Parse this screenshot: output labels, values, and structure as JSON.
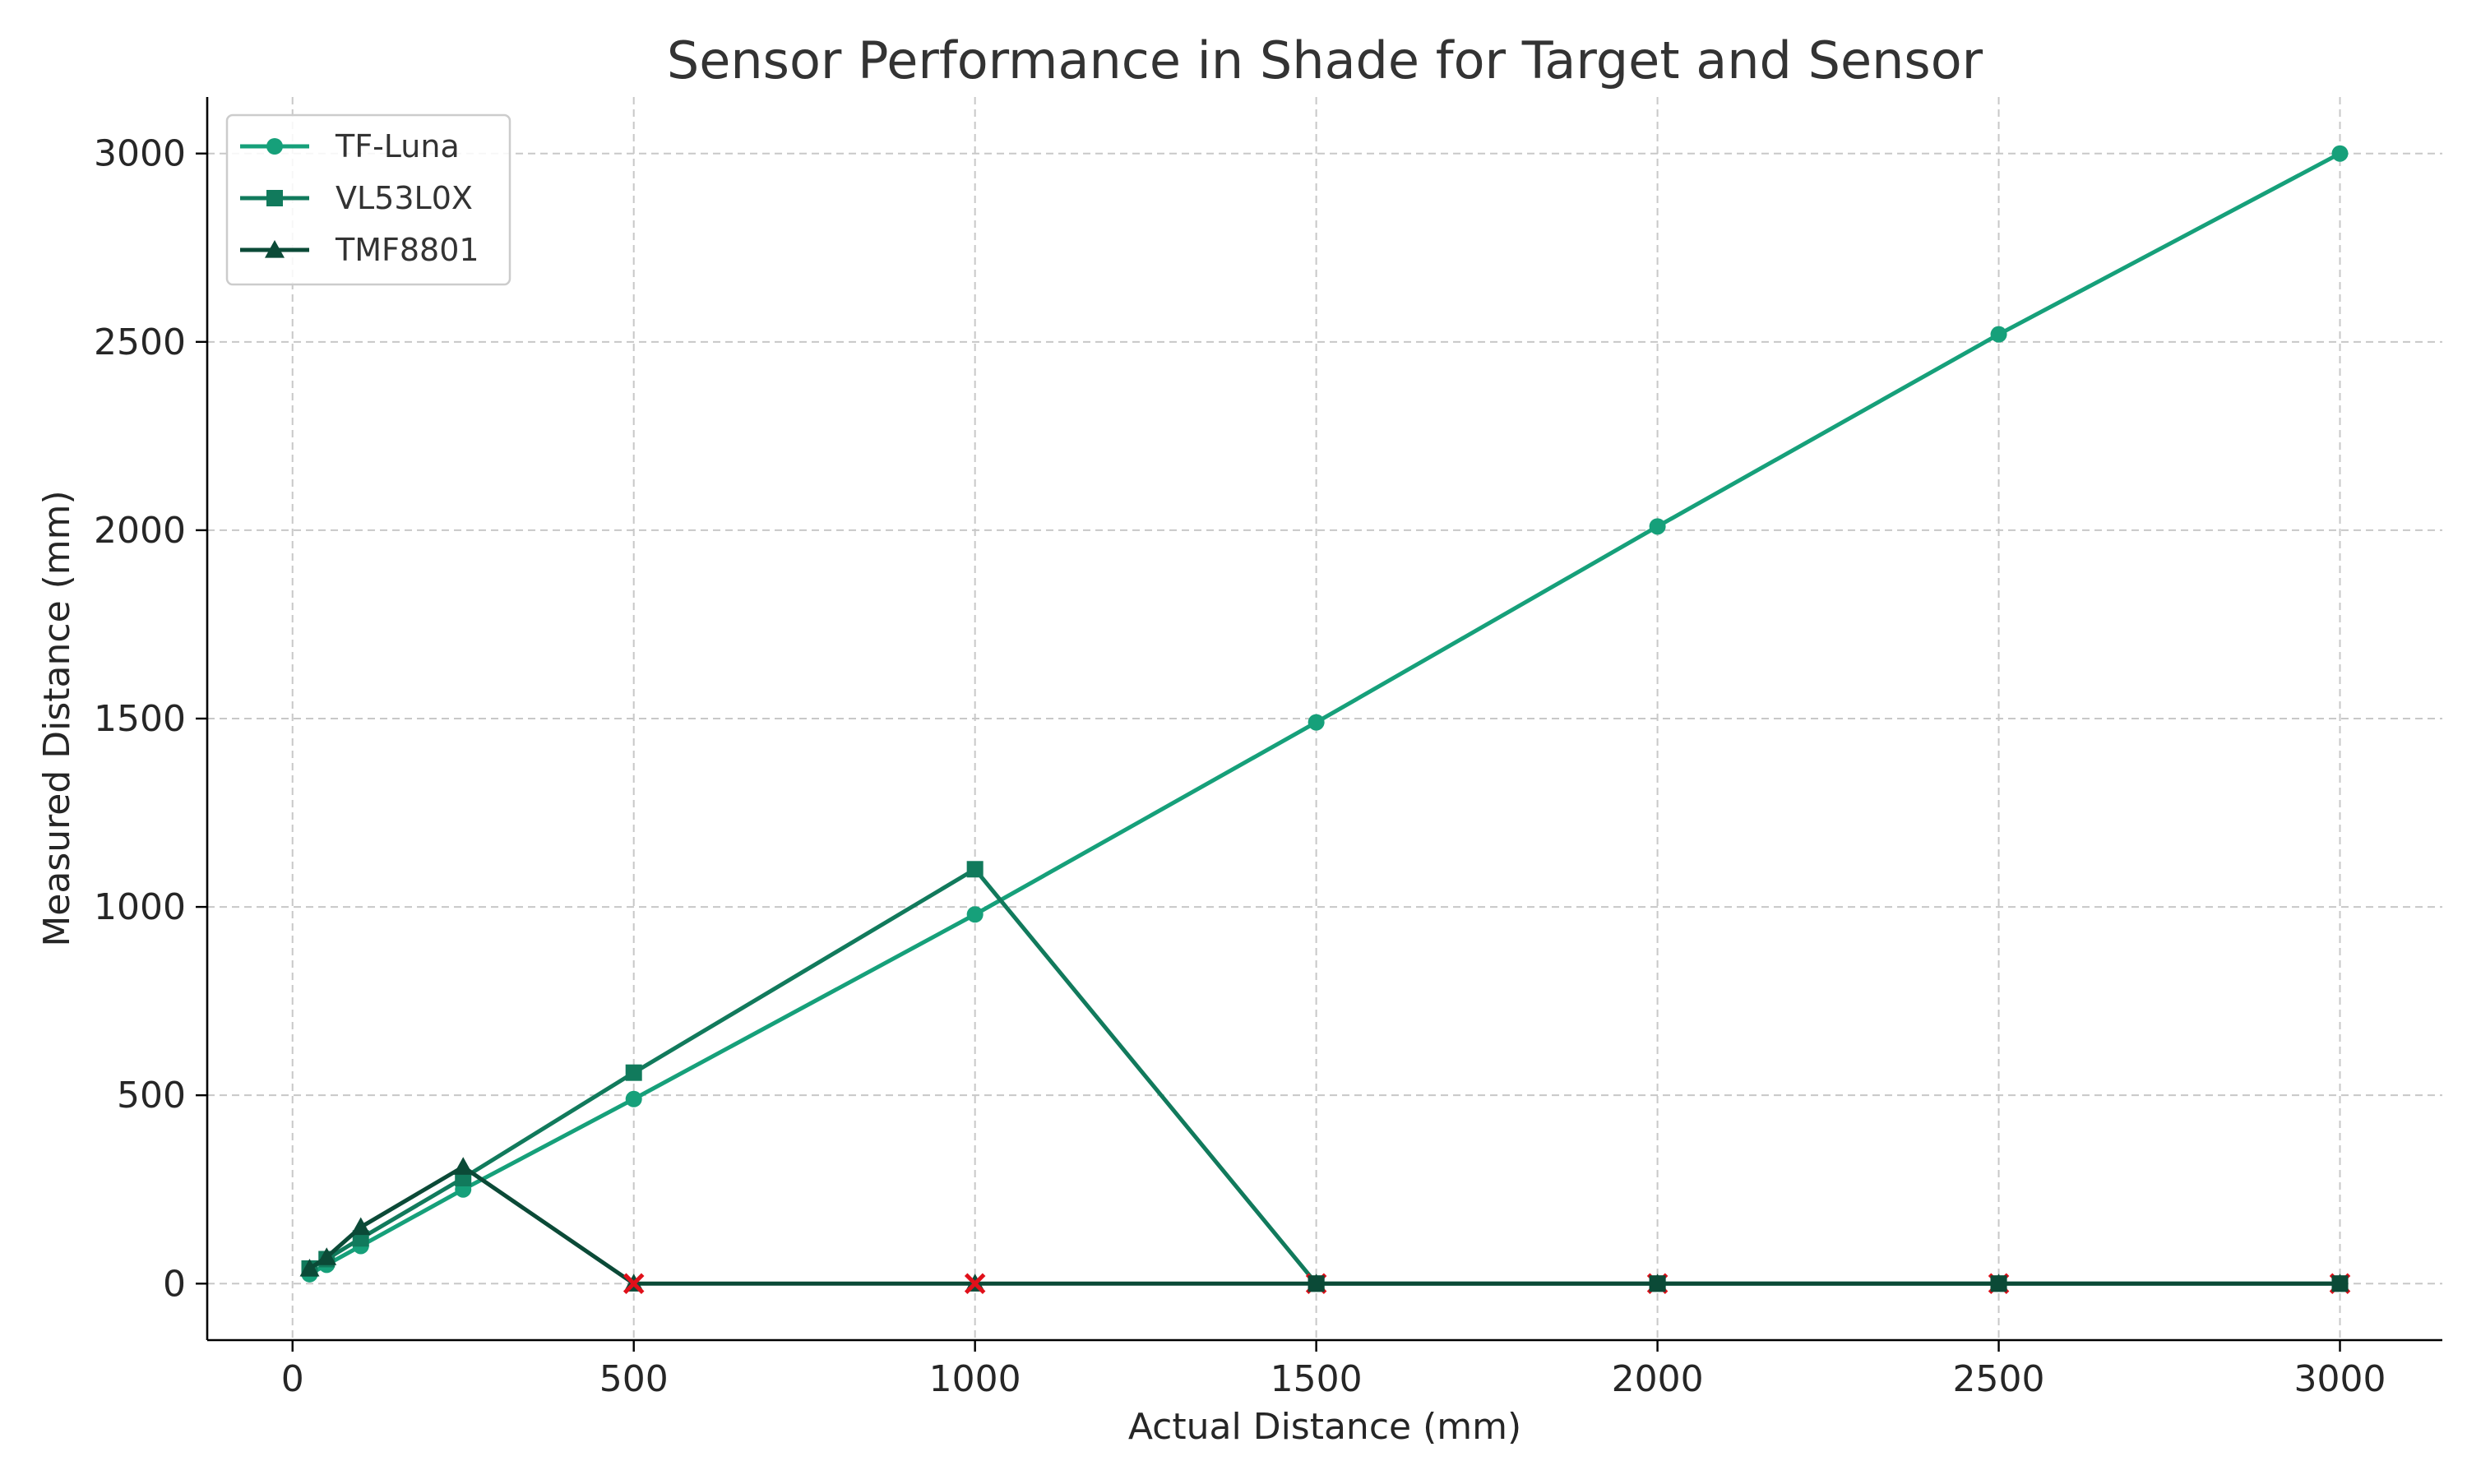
{
  "chart_data": {
    "type": "line",
    "title": "Sensor Performance in Shade for Target and Sensor",
    "xlabel": "Actual Distance (mm)",
    "ylabel": "Measured Distance (mm)",
    "xlim": [
      -125,
      3150
    ],
    "ylim": [
      -150,
      3150
    ],
    "xticks": [
      0,
      500,
      1000,
      1500,
      2000,
      2500,
      3000
    ],
    "yticks": [
      0,
      500,
      1000,
      1500,
      2000,
      2500,
      3000
    ],
    "grid": true,
    "legend_position": "top-left",
    "series": [
      {
        "name": "TF-Luna",
        "color": "#16a07a",
        "marker": "circle",
        "x": [
          25,
          50,
          100,
          250,
          500,
          1000,
          1500,
          2000,
          2500,
          3000
        ],
        "y": [
          25,
          50,
          100,
          250,
          490,
          980,
          1490,
          2010,
          2520,
          3000
        ]
      },
      {
        "name": "VL53L0X",
        "color": "#117a5c",
        "marker": "square",
        "x": [
          25,
          50,
          100,
          250,
          500,
          1000,
          1500,
          2000,
          2500,
          3000
        ],
        "y": [
          40,
          65,
          120,
          280,
          560,
          1100,
          0,
          0,
          0,
          0
        ]
      },
      {
        "name": "TMF8801",
        "color": "#0b4a37",
        "marker": "triangle",
        "x": [
          25,
          50,
          100,
          250,
          500,
          1000,
          1500,
          2000,
          2500,
          3000
        ],
        "y": [
          40,
          70,
          150,
          310,
          0,
          0,
          0,
          0,
          0,
          0
        ]
      }
    ],
    "failure_markers": {
      "marker": "x",
      "color": "#e0101a",
      "x": [
        500,
        1000,
        1500,
        2000,
        2500,
        3000
      ],
      "y": [
        0,
        0,
        0,
        0,
        0,
        0
      ]
    }
  }
}
